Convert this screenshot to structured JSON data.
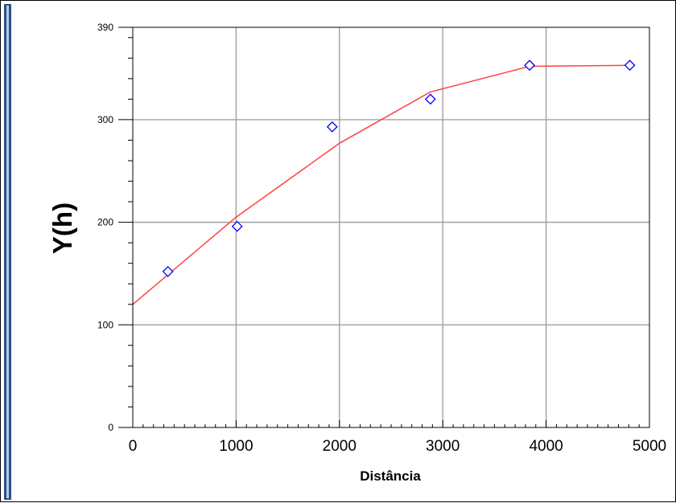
{
  "chart_data": {
    "type": "scatter",
    "xlabel": "Distância",
    "ylabel": "Y(h)",
    "xlim": [
      0,
      5000
    ],
    "ylim": [
      0,
      390
    ],
    "x_ticks": [
      "0",
      "1000",
      "2000",
      "3000",
      "4000",
      "5000"
    ],
    "y_ticks": [
      "0",
      "100",
      "200",
      "300",
      "390"
    ],
    "grid": true,
    "series": [
      {
        "kind": "markers",
        "marker": "diamond",
        "color": "#0000ff",
        "x": [
          340,
          1010,
          1930,
          2880,
          3840,
          4810
        ],
        "y": [
          152,
          196,
          293,
          320,
          353,
          353
        ]
      },
      {
        "kind": "line",
        "color": "#ff4040",
        "x": [
          0,
          1000,
          2000,
          2880,
          3840,
          4810
        ],
        "y": [
          120,
          205,
          277,
          327,
          352,
          353
        ]
      }
    ]
  }
}
